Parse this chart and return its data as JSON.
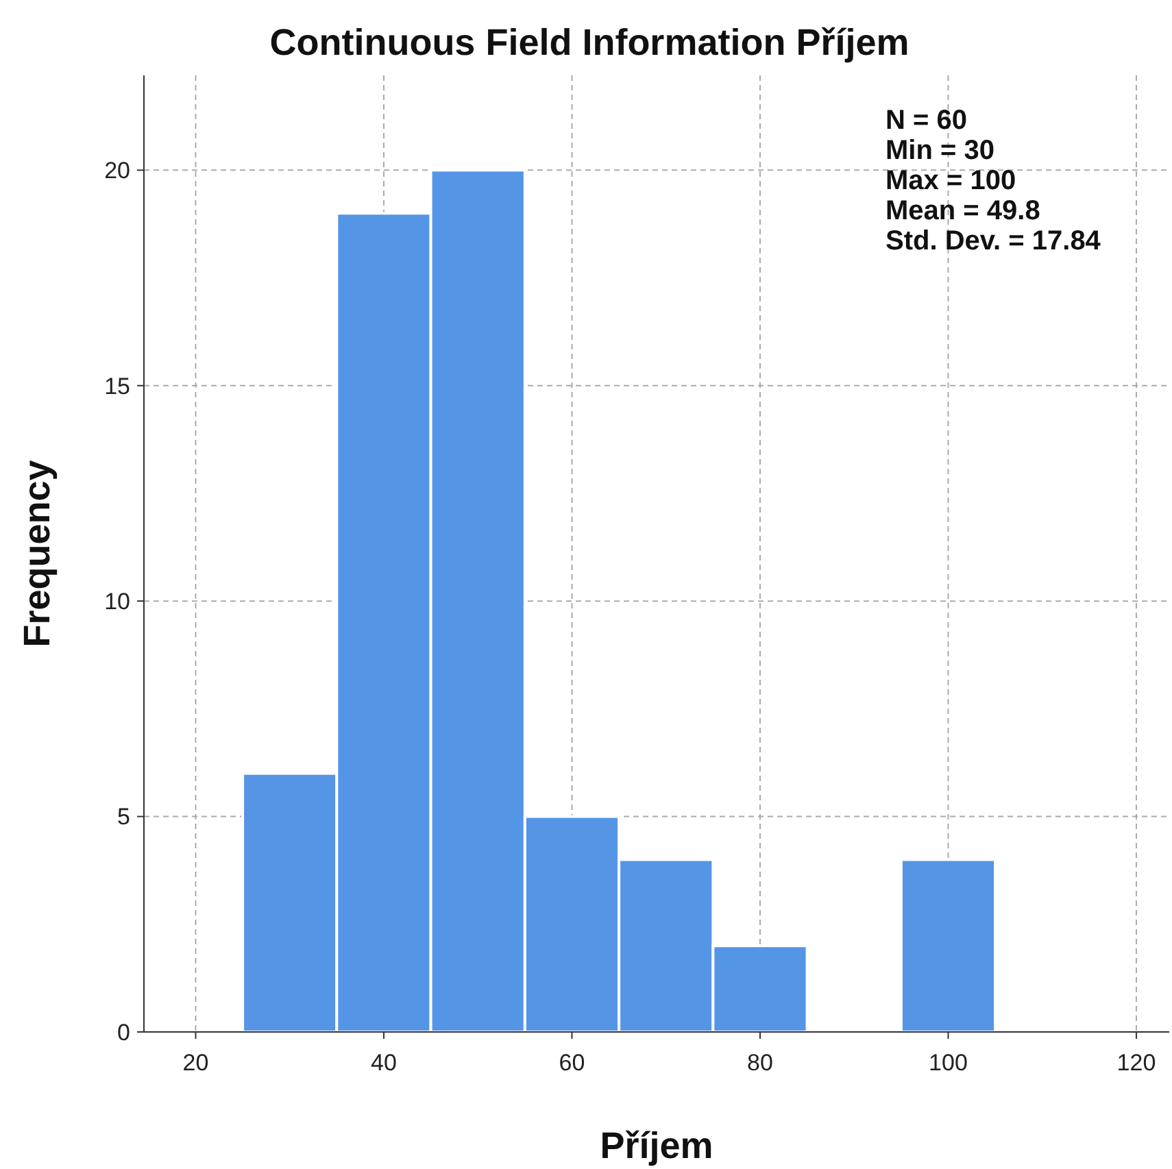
{
  "chart_data": {
    "type": "histogram",
    "title": "Continuous Field Information Příjem",
    "xlabel": "Příjem",
    "ylabel": "Frequency",
    "bins": [
      25,
      35,
      45,
      55,
      65,
      75,
      85,
      95,
      105
    ],
    "values": [
      6,
      19,
      20,
      5,
      4,
      2,
      0,
      4
    ],
    "color": "#5595e6",
    "xlim": [
      14.5,
      123.5
    ],
    "xticks": [
      20,
      40,
      60,
      80,
      100,
      120
    ],
    "ylim": [
      0,
      22.2
    ],
    "yticks": [
      0,
      5,
      10,
      15,
      20
    ],
    "grid": true,
    "annotations": [
      "N = 60",
      "Min = 30",
      "Max = 100",
      "Mean = 49.8",
      "Std. Dev. = 17.84"
    ]
  }
}
